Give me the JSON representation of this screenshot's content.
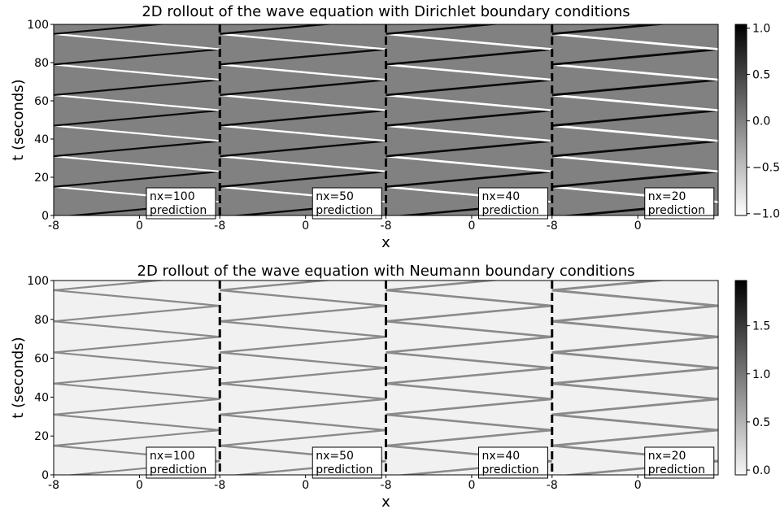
{
  "chart_data": [
    {
      "type": "heatmap",
      "title": "2D rollout of the wave equation with Dirichlet boundary conditions",
      "xlabel": "x",
      "ylabel": "t (seconds)",
      "xlim": [
        -8,
        7.5
      ],
      "xticks": [
        -8,
        0
      ],
      "ylim": [
        0,
        100
      ],
      "yticks": [
        0,
        20,
        40,
        60,
        80,
        100
      ],
      "panels": [
        [
          "nx=100",
          "prediction"
        ],
        [
          "nx=50",
          "prediction"
        ],
        [
          "nx=40",
          "prediction"
        ],
        [
          "nx=20",
          "prediction"
        ]
      ],
      "colorbar": {
        "lim": [
          -1.02,
          1.04
        ],
        "ticks": [
          {
            "value": 1,
            "label": "1.0"
          },
          0.5,
          {
            "value": 0,
            "label": "0.0"
          },
          {
            "value": -0.5,
            "label": "−0.5"
          },
          {
            "value": -1,
            "label": "−1.0"
          }
        ]
      },
      "cmap": [
        "#ffffff",
        "#000000"
      ]
    },
    {
      "type": "heatmap",
      "title": "2D rollout of the wave equation with Neumann boundary conditions",
      "xlabel": "x",
      "ylabel": "t (seconds)",
      "xlim": [
        -8,
        7.5
      ],
      "xticks": [
        -8,
        0
      ],
      "ylim": [
        0,
        100
      ],
      "yticks": [
        0,
        20,
        40,
        60,
        80,
        100
      ],
      "panels": [
        [
          "nx=100",
          "prediction"
        ],
        [
          "nx=50",
          "prediction"
        ],
        [
          "nx=40",
          "prediction"
        ],
        [
          "nx=20",
          "prediction"
        ]
      ],
      "colorbar": {
        "lim": [
          -0.05,
          1.97
        ],
        "ticks": [
          {
            "value": 0,
            "label": "0.0"
          },
          0.5,
          {
            "value": 1,
            "label": "1.0"
          },
          1.5
        ]
      },
      "cmap": [
        "#f7f7f7",
        "#000000"
      ]
    }
  ]
}
